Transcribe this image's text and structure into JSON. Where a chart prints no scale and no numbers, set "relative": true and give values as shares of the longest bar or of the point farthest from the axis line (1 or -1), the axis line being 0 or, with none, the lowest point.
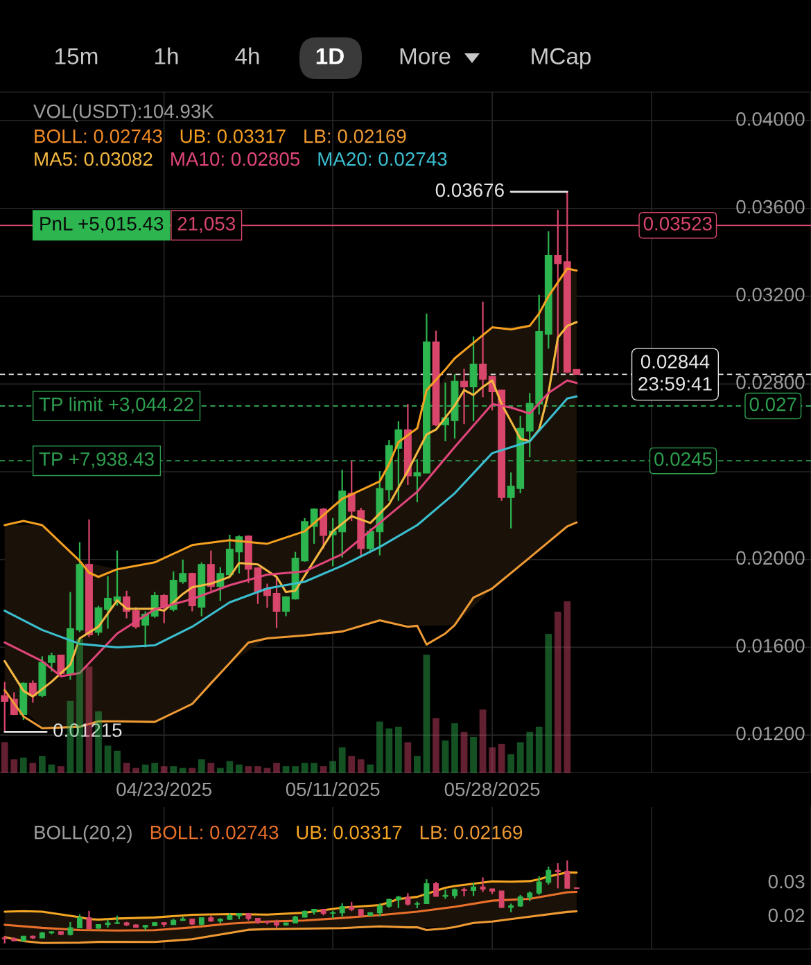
{
  "chart_data": [
    {
      "type": "candlestick",
      "x": [
        "2025-04-06",
        "2025-04-07",
        "2025-04-08",
        "2025-04-09",
        "2025-04-10",
        "2025-04-11",
        "2025-04-12",
        "2025-04-13",
        "2025-04-14",
        "2025-04-15",
        "2025-04-16",
        "2025-04-17",
        "2025-04-18",
        "2025-04-19",
        "2025-04-20",
        "2025-04-21",
        "2025-04-22",
        "2025-04-23",
        "2025-04-24",
        "2025-04-25",
        "2025-04-26",
        "2025-04-27",
        "2025-04-28",
        "2025-04-29",
        "2025-04-30",
        "2025-05-01",
        "2025-05-02",
        "2025-05-03",
        "2025-05-04",
        "2025-05-05",
        "2025-05-06",
        "2025-05-07",
        "2025-05-08",
        "2025-05-09",
        "2025-05-10",
        "2025-05-11",
        "2025-05-12",
        "2025-05-13",
        "2025-05-14",
        "2025-05-15",
        "2025-05-16",
        "2025-05-17",
        "2025-05-18",
        "2025-05-19",
        "2025-05-20",
        "2025-05-21",
        "2025-05-22",
        "2025-05-23",
        "2025-05-24",
        "2025-05-25",
        "2025-05-26",
        "2025-05-27",
        "2025-05-28",
        "2025-05-29",
        "2025-05-30",
        "2025-05-31",
        "2025-06-01",
        "2025-06-02",
        "2025-06-03",
        "2025-06-04",
        "2025-06-05",
        "2025-06-06"
      ],
      "ohlc": [
        [
          0.0138,
          0.01443,
          0.01215,
          0.01354
        ],
        [
          0.01364,
          0.01395,
          0.01291,
          0.01294
        ],
        [
          0.01294,
          0.0144,
          0.01269,
          0.01436
        ],
        [
          0.01436,
          0.01449,
          0.01348,
          0.0138
        ],
        [
          0.0138,
          0.01559,
          0.01373,
          0.01531
        ],
        [
          0.01531,
          0.01575,
          0.0149,
          0.01562
        ],
        [
          0.01565,
          0.01565,
          0.01468,
          0.0148
        ],
        [
          0.0148,
          0.01852,
          0.01452,
          0.01685
        ],
        [
          0.01679,
          0.02079,
          0.01669,
          0.01978
        ],
        [
          0.01978,
          0.02183,
          0.01647,
          0.01657
        ],
        [
          0.01669,
          0.01789,
          0.01654,
          0.0178
        ],
        [
          0.01773,
          0.01924,
          0.01685,
          0.01824
        ],
        [
          0.01811,
          0.02041,
          0.01789,
          0.0183
        ],
        [
          0.0183,
          0.01858,
          0.01732,
          0.01764
        ],
        [
          0.01767,
          0.01783,
          0.01685,
          0.01694
        ],
        [
          0.01701,
          0.01764,
          0.016,
          0.01751
        ],
        [
          0.01742,
          0.01852,
          0.01735,
          0.01836
        ],
        [
          0.01836,
          0.01843,
          0.0171,
          0.01783
        ],
        [
          0.01773,
          0.01946,
          0.01764,
          0.01906
        ],
        [
          0.01899,
          0.02,
          0.0189,
          0.01937
        ],
        [
          0.01937,
          0.0194,
          0.01764,
          0.01789
        ],
        [
          0.01783,
          0.01987,
          0.01742,
          0.01978
        ],
        [
          0.01978,
          0.02041,
          0.01858,
          0.01877
        ],
        [
          0.01877,
          0.01965,
          0.01811,
          0.01937
        ],
        [
          0.01931,
          0.02113,
          0.01921,
          0.02047
        ],
        [
          0.02035,
          0.0211,
          0.01937,
          0.02104
        ],
        [
          0.02107,
          0.0211,
          0.01893,
          0.01956
        ],
        [
          0.01962,
          0.01965,
          0.01798,
          0.01852
        ],
        [
          0.01868,
          0.0189,
          0.0178,
          0.01836
        ],
        [
          0.01846,
          0.01921,
          0.01688,
          0.01764
        ],
        [
          0.01764,
          0.01833,
          0.01742,
          0.0183
        ],
        [
          0.0182,
          0.02035,
          0.01818,
          0.02006
        ],
        [
          0.01994,
          0.02189,
          0.0199,
          0.02173
        ],
        [
          0.02151,
          0.02233,
          0.02072,
          0.0223
        ],
        [
          0.0223,
          0.02235,
          0.0205,
          0.0211
        ],
        [
          0.02113,
          0.02189,
          0.01969,
          0.02129
        ],
        [
          0.02126,
          0.02409,
          0.02009,
          0.02312
        ],
        [
          0.02302,
          0.0245,
          0.02176,
          0.0222
        ],
        [
          0.02224,
          0.02236,
          0.02016,
          0.0205
        ],
        [
          0.0205,
          0.02142,
          0.02035,
          0.02129
        ],
        [
          0.02126,
          0.02403,
          0.02019,
          0.02324
        ],
        [
          0.02318,
          0.02545,
          0.02268,
          0.0252
        ],
        [
          0.02507,
          0.0263,
          0.02268,
          0.02592
        ],
        [
          0.02592,
          0.02709,
          0.0234,
          0.02381
        ],
        [
          0.02381,
          0.02457,
          0.02261,
          0.02397
        ],
        [
          0.02394,
          0.03121,
          0.02394,
          0.02992
        ],
        [
          0.02992,
          0.03043,
          0.02608,
          0.02614
        ],
        [
          0.02614,
          0.02806,
          0.02539,
          0.02646
        ],
        [
          0.02633,
          0.02844,
          0.02551,
          0.02813
        ],
        [
          0.02813,
          0.02869,
          0.02617,
          0.02787
        ],
        [
          0.02787,
          0.03017,
          0.0263,
          0.02891
        ],
        [
          0.02891,
          0.03175,
          0.0274,
          0.02822
        ],
        [
          0.02835,
          0.02838,
          0.0268,
          0.02765
        ],
        [
          0.02772,
          0.02772,
          0.02268,
          0.02283
        ],
        [
          0.02283,
          0.02397,
          0.02142,
          0.02334
        ],
        [
          0.02324,
          0.02655,
          0.02302,
          0.02598
        ],
        [
          0.02586,
          0.02759,
          0.02466,
          0.02712
        ],
        [
          0.02709,
          0.03206,
          0.02661,
          0.03039
        ],
        [
          0.03027,
          0.03496,
          0.02961,
          0.03386
        ],
        [
          0.03386,
          0.03594,
          0.0285,
          0.03348
        ],
        [
          0.03357,
          0.03676,
          0.0285,
          0.02854
        ],
        [
          0.02866,
          0.02866,
          0.02844,
          0.02844
        ]
      ],
      "colors": [
        "#d9466c",
        "#d9466c",
        "#2db54f",
        "#d9466c",
        "#2db54f",
        "#2db54f",
        "#d9466c",
        "#2db54f",
        "#2db54f",
        "#d9466c",
        "#2db54f",
        "#2db54f",
        "#2db54f",
        "#d9466c",
        "#d9466c",
        "#2db54f",
        "#2db54f",
        "#d9466c",
        "#2db54f",
        "#2db54f",
        "#d9466c",
        "#2db54f",
        "#d9466c",
        "#2db54f",
        "#2db54f",
        "#2db54f",
        "#d9466c",
        "#d9466c",
        "#d9466c",
        "#d9466c",
        "#2db54f",
        "#2db54f",
        "#2db54f",
        "#2db54f",
        "#d9466c",
        "#2db54f",
        "#2db54f",
        "#d9466c",
        "#d9466c",
        "#2db54f",
        "#2db54f",
        "#2db54f",
        "#2db54f",
        "#d9466c",
        "#2db54f",
        "#2db54f",
        "#d9466c",
        "#2db54f",
        "#2db54f",
        "#d9466c",
        "#2db54f",
        "#d9466c",
        "#d9466c",
        "#d9466c",
        "#2db54f",
        "#2db54f",
        "#2db54f",
        "#2db54f",
        "#2db54f",
        "#d9466c",
        "#d9466c",
        "#d9466c"
      ],
      "series": [
        {
          "type": "line",
          "name": "UB: 0.03317",
          "color": "#f5a020",
          "x": [
            "2025-04-06",
            "2025-04-08",
            "2025-04-10",
            "2025-04-14",
            "2025-04-15",
            "2025-04-16",
            "2025-04-18",
            "2025-04-22",
            "2025-04-26",
            "2025-04-30",
            "2025-05-04",
            "2025-05-08",
            "2025-05-12",
            "2025-05-16",
            "2025-05-17",
            "2025-05-18",
            "2025-05-20",
            "2025-05-21",
            "2025-05-23",
            "2025-05-24",
            "2025-05-28",
            "2025-05-30",
            "2025-06-01",
            "2025-06-02",
            "2025-06-03",
            "2025-06-05",
            "2025-06-06"
          ],
          "values": [
            0.02157,
            0.02176,
            0.02157,
            0.01994,
            0.0194,
            0.01921,
            0.01956,
            0.01987,
            0.02066,
            0.02088,
            0.02072,
            0.02129,
            0.02277,
            0.02356,
            0.02435,
            0.02535,
            0.02598,
            0.02772,
            0.02866,
            0.02917,
            0.03058,
            0.03049,
            0.03065,
            0.03121,
            0.032,
            0.03326,
            0.03317
          ]
        },
        {
          "type": "line",
          "name": "LB: 0.02169",
          "color": "#ee9a34",
          "x": [
            "2025-04-06",
            "2025-04-08",
            "2025-04-10",
            "2025-04-14",
            "2025-04-16",
            "2025-04-18",
            "2025-04-22",
            "2025-04-26",
            "2025-04-28",
            "2025-04-30",
            "2025-05-02",
            "2025-05-04",
            "2025-05-08",
            "2025-05-12",
            "2025-05-16",
            "2025-05-19",
            "2025-05-20",
            "2025-05-21",
            "2025-05-23",
            "2025-05-24",
            "2025-05-26",
            "2025-05-28",
            "2025-06-01",
            "2025-06-05",
            "2025-06-06"
          ],
          "values": [
            0.01405,
            0.01285,
            0.01231,
            0.01238,
            0.01263,
            0.01263,
            0.0126,
            0.01342,
            0.01436,
            0.01528,
            0.01622,
            0.01641,
            0.01654,
            0.01672,
            0.01723,
            0.01694,
            0.01698,
            0.01613,
            0.01663,
            0.01701,
            0.01827,
            0.01868,
            0.02009,
            0.02151,
            0.02169
          ]
        },
        {
          "type": "line",
          "name": "MA5: 0.03082",
          "color": "#f4b841",
          "x": [
            "2025-04-06",
            "2025-04-08",
            "2025-04-09",
            "2025-04-11",
            "2025-04-13",
            "2025-04-14",
            "2025-04-16",
            "2025-04-18",
            "2025-04-19",
            "2025-04-22",
            "2025-04-23",
            "2025-04-25",
            "2025-04-26",
            "2025-04-28",
            "2025-04-30",
            "2025-05-01",
            "2025-05-03",
            "2025-05-05",
            "2025-05-06",
            "2025-05-07",
            "2025-05-09",
            "2025-05-11",
            "2025-05-13",
            "2025-05-15",
            "2025-05-17",
            "2025-05-19",
            "2025-05-21",
            "2025-05-22",
            "2025-05-24",
            "2025-05-25",
            "2025-05-26",
            "2025-05-27",
            "2025-05-28",
            "2025-05-29",
            "2025-05-31",
            "2025-06-01",
            "2025-06-02",
            "2025-06-03",
            "2025-06-04",
            "2025-06-05",
            "2025-06-06"
          ],
          "values": [
            0.01537,
            0.01402,
            0.01376,
            0.01443,
            0.01521,
            0.01641,
            0.01694,
            0.01814,
            0.01776,
            0.01776,
            0.01767,
            0.01843,
            0.01874,
            0.0189,
            0.01921,
            0.01984,
            0.01978,
            0.01921,
            0.01852,
            0.01858,
            0.01994,
            0.02129,
            0.02198,
            0.02167,
            0.02252,
            0.02403,
            0.0257,
            0.02592,
            0.02702,
            0.02772,
            0.0275,
            0.02787,
            0.02816,
            0.02709,
            0.02551,
            0.02539,
            0.02592,
            0.02759,
            0.03011,
            0.03065,
            0.03082
          ]
        },
        {
          "type": "line",
          "name": "MA10: 0.02805",
          "color": "#e0457b",
          "x": [
            "2025-04-06",
            "2025-04-10",
            "2025-04-12",
            "2025-04-14",
            "2025-04-18",
            "2025-04-22",
            "2025-04-26",
            "2025-04-30",
            "2025-05-04",
            "2025-05-08",
            "2025-05-12",
            "2025-05-16",
            "2025-05-20",
            "2025-05-24",
            "2025-05-28",
            "2025-05-30",
            "2025-06-01",
            "2025-06-03",
            "2025-06-05",
            "2025-06-06"
          ],
          "values": [
            0.01622,
            0.01537,
            0.01468,
            0.01483,
            0.01663,
            0.01773,
            0.0182,
            0.01883,
            0.01931,
            0.01946,
            0.02025,
            0.02167,
            0.02309,
            0.02513,
            0.02709,
            0.02693,
            0.02665,
            0.02759,
            0.02816,
            0.02805
          ]
        },
        {
          "type": "line",
          "name": "MA20: 0.02743",
          "color": "#3bbfd0",
          "x": [
            "2025-04-06",
            "2025-04-10",
            "2025-04-14",
            "2025-04-18",
            "2025-04-22",
            "2025-04-26",
            "2025-04-30",
            "2025-05-04",
            "2025-05-08",
            "2025-05-12",
            "2025-05-16",
            "2025-05-20",
            "2025-05-24",
            "2025-05-28",
            "2025-06-01",
            "2025-06-05",
            "2025-06-06"
          ],
          "values": [
            0.01767,
            0.01679,
            0.01616,
            0.016,
            0.01609,
            0.01694,
            0.01805,
            0.01868,
            0.01899,
            0.01972,
            0.02057,
            0.02157,
            0.02302,
            0.02485,
            0.02539,
            0.02734,
            0.02743
          ],
          "lower": [
            0.01405,
            0.01231,
            0.01238,
            0.01263,
            0.0126,
            0.01342,
            0.01528,
            0.01641,
            0.01654,
            0.01672,
            0.01723,
            0.01698,
            0.01701,
            0.01868,
            0.02009,
            0.02151,
            0.02169
          ],
          "upper": [
            0.02157,
            0.02157,
            0.01994,
            0.01956,
            0.01987,
            0.02066,
            0.02088,
            0.02072,
            0.02129,
            0.02277,
            0.02356,
            0.02598,
            0.02917,
            0.03058,
            0.03065,
            0.03326,
            0.03317
          ]
        }
      ],
      "xlim": [
        "2025-04-05T12:00",
        "2025-07-01"
      ],
      "xticks": [
        {
          "value": "2025-04-23",
          "label": "04/23/2025"
        },
        {
          "value": "2025-05-11",
          "label": "05/11/2025"
        },
        {
          "value": "2025-05-28",
          "label": "05/28/2025"
        },
        {
          "value": "2025-06-14",
          "label": null
        }
      ],
      "ylim": [
        0.0103,
        0.0413
      ],
      "yticks": [
        {
          "value": 0.012,
          "label": "0.01200"
        },
        {
          "value": 0.016,
          "label": "0.01600"
        },
        {
          "value": 0.02,
          "label": "0.02000"
        },
        {
          "value": 0.024,
          "label": null
        },
        {
          "value": 0.028,
          "label": "0.02800"
        },
        {
          "value": 0.032,
          "label": "0.03200"
        },
        {
          "value": 0.036,
          "label": "0.03600"
        },
        {
          "value": 0.04,
          "label": "0.04000"
        }
      ],
      "grid": true,
      "legend": "top left",
      "ref_lines": [
        {
          "axis": "y",
          "value": 0.03523,
          "label": "0.03523",
          "color": "#d9466c",
          "line_style": "solid"
        },
        {
          "axis": "y",
          "value": 0.027,
          "label": "0.027",
          "color": "#2e9e4f",
          "line_style": "dashed"
        },
        {
          "axis": "y",
          "value": 0.0245,
          "label": "0.0245",
          "color": "#2e9e4f",
          "line_style": "dashed"
        },
        {
          "axis": "y",
          "value": 0.02844,
          "label": "0.02844",
          "color": "#e6e6e6",
          "line_style": "dashed"
        }
      ],
      "annotations": [
        "15m",
        "1h",
        "4h",
        "1D",
        "More",
        "MCap",
        "BOLL: 0.02743",
        "23:59:41",
        {
          "text": "PnL +5,015.43",
          "y": 0.03523
        },
        {
          "text": "21,053",
          "y": 0.03523
        },
        {
          "text": "TP limit +3,044.22",
          "y": 0.027
        },
        {
          "text": "TP +7,938.43",
          "y": 0.0245
        },
        {
          "text": "0.03676",
          "x": "2025-06-05",
          "y": 0.03676
        },
        {
          "text": "0.01215",
          "x": "2025-04-06",
          "y": 0.01215
        }
      ]
    },
    {
      "type": "bar",
      "relative": true,
      "tick_labels": false,
      "x": [
        "2025-04-06",
        "2025-04-07",
        "2025-04-08",
        "2025-04-09",
        "2025-04-10",
        "2025-04-11",
        "2025-04-12",
        "2025-04-13",
        "2025-04-14",
        "2025-04-15",
        "2025-04-16",
        "2025-04-17",
        "2025-04-18",
        "2025-04-19",
        "2025-04-20",
        "2025-04-21",
        "2025-04-22",
        "2025-04-23",
        "2025-04-24",
        "2025-04-25",
        "2025-04-26",
        "2025-04-27",
        "2025-04-28",
        "2025-04-29",
        "2025-04-30",
        "2025-05-01",
        "2025-05-02",
        "2025-05-03",
        "2025-05-04",
        "2025-05-05",
        "2025-05-06",
        "2025-05-07",
        "2025-05-08",
        "2025-05-09",
        "2025-05-10",
        "2025-05-11",
        "2025-05-12",
        "2025-05-13",
        "2025-05-14",
        "2025-05-15",
        "2025-05-16",
        "2025-05-17",
        "2025-05-18",
        "2025-05-19",
        "2025-05-20",
        "2025-05-21",
        "2025-05-22",
        "2025-05-23",
        "2025-05-24",
        "2025-05-25",
        "2025-05-26",
        "2025-05-27",
        "2025-05-28",
        "2025-05-29",
        "2025-05-30",
        "2025-05-31",
        "2025-06-01",
        "2025-06-02",
        "2025-06-03",
        "2025-06-04",
        "2025-06-05"
      ],
      "values": [
        0.18,
        0.08,
        0.09,
        0.06,
        0.1,
        0.05,
        0.04,
        0.42,
        0.78,
        0.62,
        0.36,
        0.16,
        0.13,
        0.06,
        0.03,
        0.05,
        0.06,
        0.04,
        0.04,
        0.03,
        0.03,
        0.08,
        0.06,
        0.03,
        0.07,
        0.05,
        0.04,
        0.04,
        0.03,
        0.06,
        0.04,
        0.04,
        0.06,
        0.06,
        0.04,
        0.07,
        0.15,
        0.1,
        0.08,
        0.05,
        0.3,
        0.26,
        0.27,
        0.18,
        0.1,
        0.69,
        0.32,
        0.19,
        0.29,
        0.24,
        0.21,
        0.37,
        0.15,
        0.17,
        0.11,
        0.18,
        0.24,
        0.27,
        0.81,
        0.94,
        1
      ],
      "colors": [
        "#d9466c",
        "#d9466c",
        "#2db54f",
        "#d9466c",
        "#2db54f",
        "#2db54f",
        "#d9466c",
        "#2db54f",
        "#2db54f",
        "#d9466c",
        "#2db54f",
        "#2db54f",
        "#2db54f",
        "#d9466c",
        "#d9466c",
        "#2db54f",
        "#2db54f",
        "#d9466c",
        "#2db54f",
        "#2db54f",
        "#d9466c",
        "#2db54f",
        "#d9466c",
        "#2db54f",
        "#2db54f",
        "#2db54f",
        "#d9466c",
        "#d9466c",
        "#d9466c",
        "#d9466c",
        "#2db54f",
        "#2db54f",
        "#2db54f",
        "#2db54f",
        "#d9466c",
        "#2db54f",
        "#2db54f",
        "#d9466c",
        "#d9466c",
        "#2db54f",
        "#2db54f",
        "#2db54f",
        "#2db54f",
        "#d9466c",
        "#2db54f",
        "#2db54f",
        "#d9466c",
        "#2db54f",
        "#2db54f",
        "#d9466c",
        "#2db54f",
        "#d9466c",
        "#d9466c",
        "#d9466c",
        "#2db54f",
        "#2db54f",
        "#2db54f",
        "#2db54f",
        "#2db54f",
        "#d9466c",
        "#d9466c"
      ],
      "xlim": [
        "2025-04-05T12:00",
        "2025-07-01"
      ],
      "annotations": [
        "VOL(USDT):104.93K"
      ]
    },
    {
      "type": "candlestick",
      "title": "BOLL(20,2)",
      "tick_labels": "y",
      "x": [
        "2025-04-06",
        "2025-04-07",
        "2025-04-08",
        "2025-04-09",
        "2025-04-10",
        "2025-04-11",
        "2025-04-12",
        "2025-04-13",
        "2025-04-14",
        "2025-04-15",
        "2025-04-16",
        "2025-04-17",
        "2025-04-18",
        "2025-04-19",
        "2025-04-20",
        "2025-04-21",
        "2025-04-22",
        "2025-04-23",
        "2025-04-24",
        "2025-04-25",
        "2025-04-26",
        "2025-04-27",
        "2025-04-28",
        "2025-04-29",
        "2025-04-30",
        "2025-05-01",
        "2025-05-02",
        "2025-05-03",
        "2025-05-04",
        "2025-05-05",
        "2025-05-06",
        "2025-05-07",
        "2025-05-08",
        "2025-05-09",
        "2025-05-10",
        "2025-05-11",
        "2025-05-12",
        "2025-05-13",
        "2025-05-14",
        "2025-05-15",
        "2025-05-16",
        "2025-05-17",
        "2025-05-18",
        "2025-05-19",
        "2025-05-20",
        "2025-05-21",
        "2025-05-22",
        "2025-05-23",
        "2025-05-24",
        "2025-05-25",
        "2025-05-26",
        "2025-05-27",
        "2025-05-28",
        "2025-05-29",
        "2025-05-30",
        "2025-05-31",
        "2025-06-01",
        "2025-06-02",
        "2025-06-03",
        "2025-06-04",
        "2025-06-05",
        "2025-06-06"
      ],
      "ohlc": [
        [
          0.0138,
          0.01443,
          0.01215,
          0.01354
        ],
        [
          0.01364,
          0.01395,
          0.01291,
          0.01294
        ],
        [
          0.01294,
          0.0144,
          0.01269,
          0.01436
        ],
        [
          0.01436,
          0.01449,
          0.01348,
          0.0138
        ],
        [
          0.0138,
          0.01559,
          0.01373,
          0.01531
        ],
        [
          0.01531,
          0.01575,
          0.0149,
          0.01562
        ],
        [
          0.01565,
          0.01565,
          0.01468,
          0.0148
        ],
        [
          0.0148,
          0.01852,
          0.01452,
          0.01685
        ],
        [
          0.01679,
          0.02079,
          0.01669,
          0.01978
        ],
        [
          0.01978,
          0.02183,
          0.01647,
          0.01657
        ],
        [
          0.01669,
          0.01789,
          0.01654,
          0.0178
        ],
        [
          0.01773,
          0.01924,
          0.01685,
          0.01824
        ],
        [
          0.01811,
          0.02041,
          0.01789,
          0.0183
        ],
        [
          0.0183,
          0.01858,
          0.01732,
          0.01764
        ],
        [
          0.01767,
          0.01783,
          0.01685,
          0.01694
        ],
        [
          0.01701,
          0.01764,
          0.016,
          0.01751
        ],
        [
          0.01742,
          0.01852,
          0.01735,
          0.01836
        ],
        [
          0.01836,
          0.01843,
          0.0171,
          0.01783
        ],
        [
          0.01773,
          0.01946,
          0.01764,
          0.01906
        ],
        [
          0.01899,
          0.02,
          0.0189,
          0.01937
        ],
        [
          0.01937,
          0.0194,
          0.01764,
          0.01789
        ],
        [
          0.01783,
          0.01987,
          0.01742,
          0.01978
        ],
        [
          0.01978,
          0.02041,
          0.01858,
          0.01877
        ],
        [
          0.01877,
          0.01965,
          0.01811,
          0.01937
        ],
        [
          0.01931,
          0.02113,
          0.01921,
          0.02047
        ],
        [
          0.02035,
          0.0211,
          0.01937,
          0.02104
        ],
        [
          0.02107,
          0.0211,
          0.01893,
          0.01956
        ],
        [
          0.01962,
          0.01965,
          0.01798,
          0.01852
        ],
        [
          0.01868,
          0.0189,
          0.0178,
          0.01836
        ],
        [
          0.01846,
          0.01921,
          0.01688,
          0.01764
        ],
        [
          0.01764,
          0.01833,
          0.01742,
          0.0183
        ],
        [
          0.0182,
          0.02035,
          0.01818,
          0.02006
        ],
        [
          0.01994,
          0.02189,
          0.0199,
          0.02173
        ],
        [
          0.02151,
          0.02233,
          0.02072,
          0.0223
        ],
        [
          0.0223,
          0.02235,
          0.0205,
          0.0211
        ],
        [
          0.02113,
          0.02189,
          0.01969,
          0.02129
        ],
        [
          0.02126,
          0.02409,
          0.02009,
          0.02312
        ],
        [
          0.02302,
          0.0245,
          0.02176,
          0.0222
        ],
        [
          0.02224,
          0.02236,
          0.02016,
          0.0205
        ],
        [
          0.0205,
          0.02142,
          0.02035,
          0.02129
        ],
        [
          0.02126,
          0.02403,
          0.02019,
          0.02324
        ],
        [
          0.02318,
          0.02545,
          0.02268,
          0.0252
        ],
        [
          0.02507,
          0.0263,
          0.02268,
          0.02592
        ],
        [
          0.02592,
          0.02709,
          0.0234,
          0.02381
        ],
        [
          0.02381,
          0.02457,
          0.02261,
          0.02397
        ],
        [
          0.02394,
          0.03121,
          0.02394,
          0.02992
        ],
        [
          0.02992,
          0.03043,
          0.02608,
          0.02614
        ],
        [
          0.02614,
          0.02806,
          0.02539,
          0.02646
        ],
        [
          0.02633,
          0.02844,
          0.02551,
          0.02813
        ],
        [
          0.02813,
          0.02869,
          0.02617,
          0.02787
        ],
        [
          0.02787,
          0.03017,
          0.0263,
          0.02891
        ],
        [
          0.02891,
          0.03175,
          0.0274,
          0.02822
        ],
        [
          0.02835,
          0.02838,
          0.0268,
          0.02765
        ],
        [
          0.02772,
          0.02772,
          0.02268,
          0.02283
        ],
        [
          0.02283,
          0.02397,
          0.02142,
          0.02334
        ],
        [
          0.02324,
          0.02655,
          0.02302,
          0.02598
        ],
        [
          0.02586,
          0.02759,
          0.02466,
          0.02712
        ],
        [
          0.02709,
          0.03206,
          0.02661,
          0.03039
        ],
        [
          0.03027,
          0.03496,
          0.02961,
          0.03386
        ],
        [
          0.03386,
          0.03594,
          0.0285,
          0.03348
        ],
        [
          0.03357,
          0.03676,
          0.0285,
          0.02854
        ],
        [
          0.02866,
          0.02866,
          0.02844,
          0.02844
        ]
      ],
      "colors": [
        "#d9466c",
        "#d9466c",
        "#2db54f",
        "#d9466c",
        "#2db54f",
        "#2db54f",
        "#d9466c",
        "#2db54f",
        "#2db54f",
        "#d9466c",
        "#2db54f",
        "#2db54f",
        "#2db54f",
        "#d9466c",
        "#d9466c",
        "#2db54f",
        "#2db54f",
        "#d9466c",
        "#2db54f",
        "#2db54f",
        "#d9466c",
        "#2db54f",
        "#d9466c",
        "#2db54f",
        "#2db54f",
        "#2db54f",
        "#d9466c",
        "#d9466c",
        "#d9466c",
        "#d9466c",
        "#2db54f",
        "#2db54f",
        "#2db54f",
        "#2db54f",
        "#d9466c",
        "#2db54f",
        "#2db54f",
        "#d9466c",
        "#d9466c",
        "#2db54f",
        "#2db54f",
        "#2db54f",
        "#2db54f",
        "#d9466c",
        "#2db54f",
        "#2db54f",
        "#d9466c",
        "#2db54f",
        "#2db54f",
        "#d9466c",
        "#2db54f",
        "#d9466c",
        "#d9466c",
        "#d9466c",
        "#2db54f",
        "#2db54f",
        "#2db54f",
        "#2db54f",
        "#2db54f",
        "#d9466c",
        "#d9466c",
        "#d9466c"
      ],
      "series": [
        {
          "type": "line",
          "name": "BOLL: 0.02743",
          "color": "#e8702a",
          "x": [
            "2025-04-06",
            "2025-04-10",
            "2025-04-14",
            "2025-04-18",
            "2025-04-22",
            "2025-04-26",
            "2025-04-30",
            "2025-05-04",
            "2025-05-08",
            "2025-05-12",
            "2025-05-16",
            "2025-05-20",
            "2025-05-24",
            "2025-05-28",
            "2025-06-01",
            "2025-06-05",
            "2025-06-06"
          ],
          "values": [
            0.01767,
            0.01679,
            0.01616,
            0.016,
            0.01609,
            0.01694,
            0.01805,
            0.01868,
            0.01899,
            0.01972,
            0.02057,
            0.02157,
            0.02302,
            0.02485,
            0.02539,
            0.02734,
            0.02743
          ],
          "lower": [
            0.01405,
            0.01231,
            0.01238,
            0.01263,
            0.0126,
            0.01342,
            0.01528,
            0.01641,
            0.01654,
            0.01672,
            0.01723,
            0.01698,
            0.01701,
            0.01868,
            0.02009,
            0.02151,
            0.02169
          ],
          "upper": [
            0.02157,
            0.02157,
            0.01994,
            0.01956,
            0.01987,
            0.02066,
            0.02088,
            0.02072,
            0.02129,
            0.02277,
            0.02356,
            0.02598,
            0.02917,
            0.03058,
            0.03065,
            0.03326,
            0.03317
          ]
        },
        {
          "type": "line",
          "name": "UB: 0.03317",
          "color": "#f5a623",
          "x": [
            "2025-04-06",
            "2025-04-08",
            "2025-04-10",
            "2025-04-14",
            "2025-04-15",
            "2025-04-16",
            "2025-04-18",
            "2025-04-22",
            "2025-04-26",
            "2025-04-30",
            "2025-05-04",
            "2025-05-08",
            "2025-05-12",
            "2025-05-16",
            "2025-05-17",
            "2025-05-18",
            "2025-05-20",
            "2025-05-21",
            "2025-05-23",
            "2025-05-24",
            "2025-05-28",
            "2025-05-30",
            "2025-06-01",
            "2025-06-02",
            "2025-06-03",
            "2025-06-05",
            "2025-06-06"
          ],
          "values": [
            0.02157,
            0.02176,
            0.02157,
            0.01994,
            0.0194,
            0.01921,
            0.01956,
            0.01987,
            0.02066,
            0.02088,
            0.02072,
            0.02129,
            0.02277,
            0.02356,
            0.02435,
            0.02535,
            0.02598,
            null,
            0.02866,
            0.02917,
            0.03058,
            0.03049,
            0.03065,
            0.03121,
            0.032,
            0.03326,
            0.03317
          ]
        },
        {
          "type": "line",
          "name": "LB: 0.02169",
          "color": "#ee9a34",
          "x": [
            "2025-04-06",
            "2025-04-08",
            "2025-04-10",
            "2025-04-14",
            "2025-04-16",
            "2025-04-18",
            "2025-04-22",
            "2025-04-26",
            "2025-04-28",
            "2025-04-30",
            "2025-05-02",
            "2025-05-04",
            "2025-05-08",
            "2025-05-12",
            "2025-05-16",
            "2025-05-19",
            "2025-05-20",
            "2025-05-21",
            "2025-05-23",
            "2025-05-24",
            "2025-05-26",
            "2025-05-28",
            "2025-06-01",
            "2025-06-05",
            "2025-06-06"
          ],
          "values": [
            0.01405,
            0.01285,
            0.01231,
            0.01238,
            0.01263,
            0.01263,
            0.0126,
            0.01342,
            0.01436,
            0.01528,
            0.01622,
            0.01641,
            0.01654,
            0.01672,
            0.01723,
            0.01694,
            0.01698,
            0.01613,
            0.01663,
            0.01701,
            0.01827,
            0.01868,
            0.02009,
            0.02151,
            0.02169
          ]
        }
      ],
      "xlim": [
        "2025-04-05T12:00",
        "2025-07-01"
      ],
      "xticks": [
        {
          "value": "2025-04-23",
          "label": null
        },
        {
          "value": "2025-05-11",
          "label": null
        },
        {
          "value": "2025-05-28",
          "label": null
        },
        {
          "value": "2025-06-14",
          "label": null
        }
      ],
      "ylim": [
        0.0105,
        0.0526
      ],
      "yticks": [
        0.02,
        0.03
      ],
      "grid": "x",
      "legend": "top left"
    }
  ]
}
